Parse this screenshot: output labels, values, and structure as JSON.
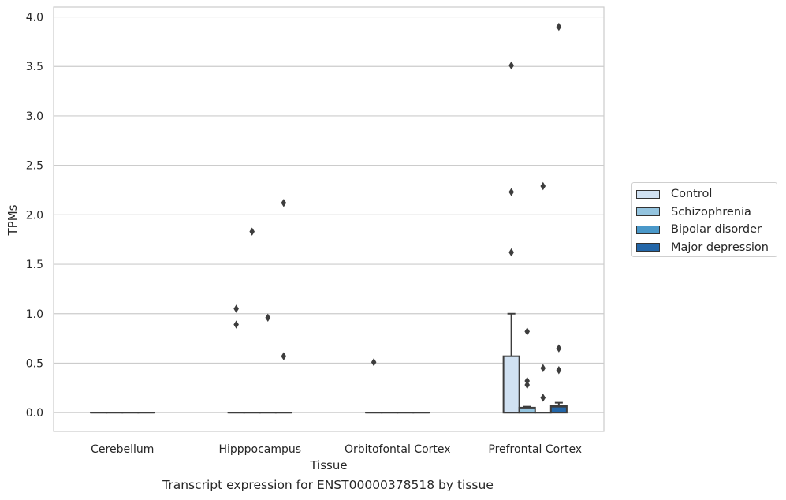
{
  "chart_data": {
    "type": "box",
    "title": "Transcript expression for ENST00000378518 by tissue",
    "xlabel": "Tissue",
    "ylabel": "TPMs",
    "ylim": [
      -0.19,
      4.1
    ],
    "yticks": [
      "0.0",
      "0.5",
      "1.0",
      "1.5",
      "2.0",
      "2.5",
      "3.0",
      "3.5",
      "4.0"
    ],
    "grid": true,
    "legend_position": "right",
    "categories": [
      "Cerebellum",
      "Hipppocampus",
      "Orbitofontal Cortex",
      "Prefrontal Cortex"
    ],
    "series": [
      {
        "name": "Control",
        "color": "#d0e1f2",
        "boxes": [
          {
            "q1": 0,
            "median": 0,
            "q3": 0,
            "whisker_low": 0,
            "whisker_high": 0,
            "outliers": []
          },
          {
            "q1": 0,
            "median": 0,
            "q3": 0,
            "whisker_low": 0,
            "whisker_high": 0,
            "outliers": [
              0.89,
              1.05
            ]
          },
          {
            "q1": 0,
            "median": 0,
            "q3": 0,
            "whisker_low": 0,
            "whisker_high": 0,
            "outliers": [
              0.51
            ]
          },
          {
            "q1": 0,
            "median": 0,
            "q3": 0.57,
            "whisker_low": 0,
            "whisker_high": 1.0,
            "outliers": [
              1.62,
              2.23,
              3.51
            ]
          }
        ]
      },
      {
        "name": "Schizophrenia",
        "color": "#94c4df",
        "boxes": [
          {
            "q1": 0,
            "median": 0,
            "q3": 0,
            "whisker_low": 0,
            "whisker_high": 0,
            "outliers": []
          },
          {
            "q1": 0,
            "median": 0,
            "q3": 0,
            "whisker_low": 0,
            "whisker_high": 0,
            "outliers": [
              1.83
            ]
          },
          {
            "q1": 0,
            "median": 0,
            "q3": 0,
            "whisker_low": 0,
            "whisker_high": 0,
            "outliers": []
          },
          {
            "q1": 0,
            "median": 0,
            "q3": 0.05,
            "whisker_low": 0,
            "whisker_high": 0.06,
            "outliers": [
              0.28,
              0.32,
              0.82
            ]
          }
        ]
      },
      {
        "name": "Bipolar disorder",
        "color": "#4a98c9",
        "boxes": [
          {
            "q1": 0,
            "median": 0,
            "q3": 0,
            "whisker_low": 0,
            "whisker_high": 0,
            "outliers": []
          },
          {
            "q1": 0,
            "median": 0,
            "q3": 0,
            "whisker_low": 0,
            "whisker_high": 0,
            "outliers": [
              0.96
            ]
          },
          {
            "q1": 0,
            "median": 0,
            "q3": 0,
            "whisker_low": 0,
            "whisker_high": 0,
            "outliers": []
          },
          {
            "q1": 0,
            "median": 0,
            "q3": 0,
            "whisker_low": 0,
            "whisker_high": 0,
            "outliers": [
              0.15,
              0.45,
              2.29
            ]
          }
        ]
      },
      {
        "name": "Major depression",
        "color": "#2366a8",
        "boxes": [
          {
            "q1": 0,
            "median": 0,
            "q3": 0,
            "whisker_low": 0,
            "whisker_high": 0,
            "outliers": []
          },
          {
            "q1": 0,
            "median": 0,
            "q3": 0,
            "whisker_low": 0,
            "whisker_high": 0,
            "outliers": [
              0.57,
              2.12
            ]
          },
          {
            "q1": 0,
            "median": 0,
            "q3": 0,
            "whisker_low": 0,
            "whisker_high": 0,
            "outliers": []
          },
          {
            "q1": 0,
            "median": 0.06,
            "q3": 0.07,
            "whisker_low": 0,
            "whisker_high": 0.1,
            "outliers": [
              0.43,
              0.65,
              3.9
            ]
          }
        ]
      }
    ]
  }
}
